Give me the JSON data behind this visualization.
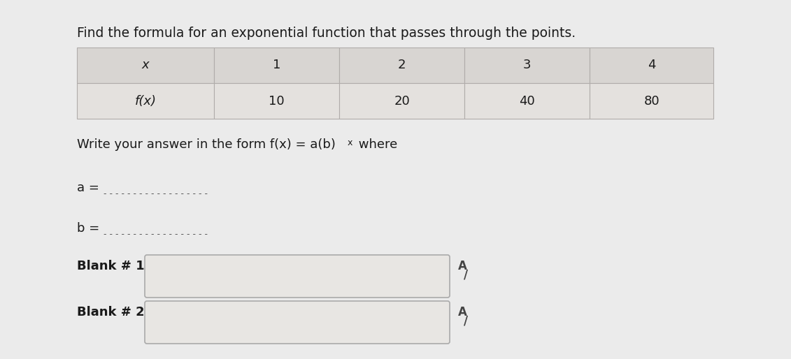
{
  "title": "Find the formula for an exponential function that passes through the points.",
  "table_headers": [
    "x",
    "1",
    "2",
    "3",
    "4"
  ],
  "table_row_label": "f(x)",
  "table_values": [
    "10",
    "20",
    "40",
    "80"
  ],
  "a_label": "a =",
  "b_label": "b =",
  "blank1_label": "Blank # 1",
  "blank2_label": "Blank # 2",
  "bg_color": "#ebebeb",
  "table_header_bg": "#d8d5d2",
  "table_row_bg": "#e4e1de",
  "table_border_color": "#b0acaa",
  "text_color": "#1a1a1a",
  "title_fontsize": 13.5,
  "body_fontsize": 13,
  "label_fontsize": 13,
  "input_box_bg": "#e4e1de",
  "input_box_border": "#aaaaaa"
}
